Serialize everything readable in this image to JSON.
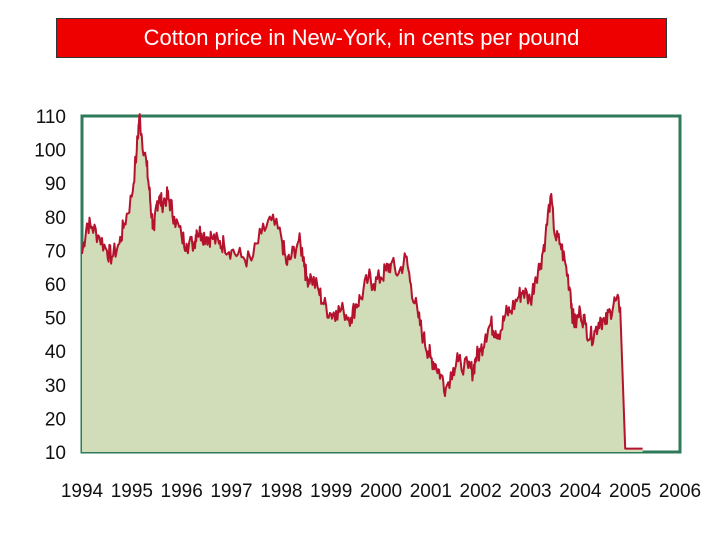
{
  "colors": {
    "title_bg": "#ee0000",
    "frame": "#2e7a5a",
    "area_fill": "#d1dcb8",
    "line": "#b5122e"
  },
  "chart_data": {
    "type": "area",
    "title": "Cotton price in New-York, in cents per pound",
    "xlabel": "",
    "ylabel": "",
    "xlim": [
      1994,
      2006
    ],
    "ylim": [
      10,
      110
    ],
    "x_ticks": [
      "1994",
      "1995",
      "1996",
      "1997",
      "1998",
      "1999",
      "2000",
      "2001",
      "2002",
      "2003",
      "2004",
      "2005",
      "2006"
    ],
    "y_ticks": [
      110,
      100,
      90,
      80,
      70,
      60,
      50,
      40,
      30,
      20,
      10
    ],
    "grid": false,
    "legend": "none",
    "series": [
      {
        "x": [
          1994.0,
          1994.1,
          1994.2,
          1994.35,
          1994.5,
          1994.6,
          1994.75,
          1994.85,
          1995.0,
          1995.1,
          1995.15,
          1995.2,
          1995.3,
          1995.35,
          1995.4,
          1995.45,
          1995.5,
          1995.55,
          1995.6,
          1995.7,
          1995.75,
          1995.85,
          1996.0,
          1996.1,
          1996.25,
          1996.3,
          1996.4,
          1996.5,
          1996.6,
          1996.75,
          1996.85,
          1997.0,
          1997.2,
          1997.4,
          1997.6,
          1997.8,
          1998.0,
          1998.1,
          1998.2,
          1998.35,
          1998.45,
          1998.5,
          1998.6,
          1998.75,
          1998.85,
          1999.0,
          1999.1,
          1999.25,
          1999.4,
          1999.5,
          1999.6,
          1999.75,
          1999.85,
          2000.0,
          2000.1,
          2000.2,
          2000.35,
          2000.5,
          2000.6,
          2000.75,
          2000.85,
          2000.95,
          2001.0,
          2001.1,
          2001.2,
          2001.3,
          2001.45,
          2001.55,
          2001.75,
          2001.85,
          2001.9,
          2002.0,
          2002.1,
          2002.2,
          2002.3,
          2002.4,
          2002.5,
          2002.6,
          2002.75,
          2002.85,
          2003.0,
          2003.1,
          2003.2,
          2003.3,
          2003.4,
          2003.5,
          2003.6,
          2003.7,
          2003.8,
          2003.85,
          2003.9,
          2004.0,
          2004.1,
          2004.2,
          2004.3,
          2004.4,
          2004.5,
          2004.6,
          2004.7,
          2004.8,
          2004.9,
          2005.0,
          2005.1,
          2005.2,
          2005.25
        ],
        "values": [
          69,
          78,
          77,
          74,
          70,
          68,
          72,
          78,
          86,
          100,
          110,
          104,
          95,
          88,
          80,
          76,
          84,
          86,
          84,
          86,
          85,
          80,
          74,
          72,
          72,
          76,
          75,
          74,
          74,
          72,
          72,
          70,
          68,
          67,
          75,
          79,
          74,
          66,
          68,
          73,
          68,
          62,
          62,
          58,
          54,
          51,
          52,
          52,
          50,
          54,
          56,
          62,
          60,
          62,
          64,
          66,
          63,
          68,
          60,
          50,
          44,
          40,
          38,
          36,
          33,
          29,
          35,
          37,
          35,
          34,
          38,
          40,
          45,
          48,
          46,
          46,
          51,
          52,
          56,
          58,
          55,
          62,
          66,
          74,
          86,
          74,
          72,
          66,
          58,
          50,
          48,
          52,
          48,
          44,
          46,
          50,
          48,
          52,
          55,
          53,
          11,
          11,
          11,
          11,
          11
        ]
      }
    ]
  }
}
